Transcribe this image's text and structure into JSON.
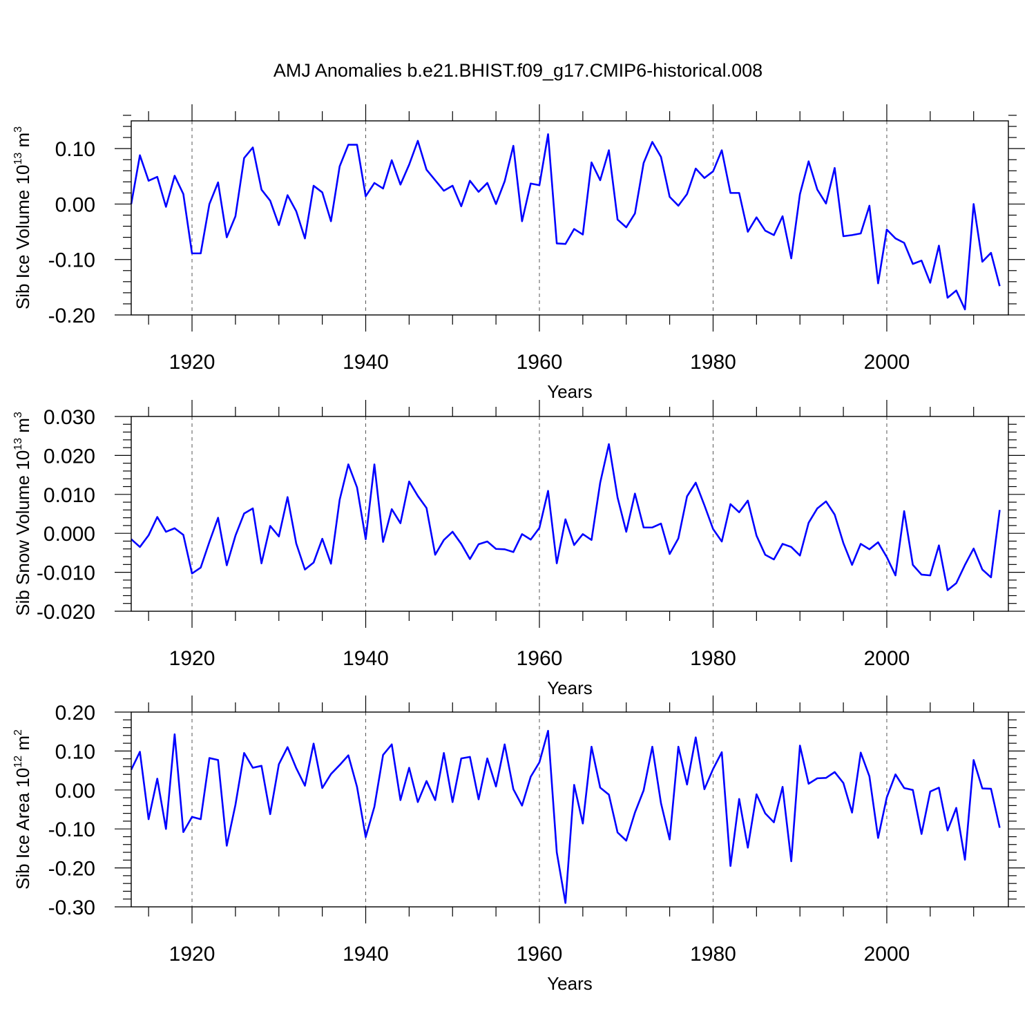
{
  "title": "AMJ Anomalies b.e21.BHIST.f09_g17.CMIP6-historical.008",
  "line_color": "#0000ff",
  "chart_data": [
    {
      "type": "line",
      "ylabel_main": "Sib Ice Volume 10",
      "ylabel_exp": "13",
      "ylabel_unit": " m",
      "ylabel_unit_exp": "3",
      "xlabel": "Years",
      "xlim": [
        1913,
        2014
      ],
      "ylim": [
        -0.2,
        0.15
      ],
      "yticks": [
        -0.2,
        -0.1,
        0.0,
        0.1
      ],
      "ytick_labels": [
        "-0.20",
        "-0.10",
        "0.00",
        "0.10"
      ],
      "xticks": [
        1920,
        1940,
        1960,
        1980,
        2000
      ],
      "xtick_labels": [
        "1920",
        "1940",
        "1960",
        "1980",
        "2000"
      ],
      "x_start": 1913,
      "values": [
        0.0,
        0.088,
        0.042,
        0.049,
        -0.005,
        0.051,
        0.018,
        -0.089,
        -0.089,
        0.0,
        0.039,
        -0.06,
        -0.022,
        0.083,
        0.102,
        0.026,
        0.006,
        -0.038,
        0.016,
        -0.013,
        -0.062,
        0.033,
        0.021,
        -0.031,
        0.068,
        0.107,
        0.107,
        0.014,
        0.038,
        0.028,
        0.079,
        0.035,
        0.071,
        0.114,
        0.062,
        0.043,
        0.024,
        0.033,
        -0.004,
        0.042,
        0.022,
        0.038,
        0.0,
        0.041,
        0.105,
        -0.031,
        0.037,
        0.034,
        0.126,
        -0.071,
        -0.072,
        -0.045,
        -0.055,
        0.075,
        0.043,
        0.097,
        -0.028,
        -0.042,
        -0.017,
        0.074,
        0.112,
        0.085,
        0.013,
        -0.003,
        0.018,
        0.064,
        0.047,
        0.059,
        0.097,
        0.02,
        0.02,
        -0.05,
        -0.024,
        -0.048,
        -0.056,
        -0.022,
        -0.098,
        0.018,
        0.077,
        0.026,
        0.001,
        0.065,
        -0.058,
        -0.056,
        -0.053,
        -0.003,
        -0.143,
        -0.046,
        -0.062,
        -0.07,
        -0.108,
        -0.102,
        -0.142,
        -0.075,
        -0.169,
        -0.156,
        -0.19,
        0.0,
        -0.104,
        -0.088,
        -0.148
      ]
    },
    {
      "type": "line",
      "ylabel_main": "Sib Snow Volume 10",
      "ylabel_exp": "13",
      "ylabel_unit": " m",
      "ylabel_unit_exp": "3",
      "xlabel": "Years",
      "xlim": [
        1913,
        2014
      ],
      "ylim": [
        -0.02,
        0.03
      ],
      "yticks": [
        -0.02,
        -0.01,
        0.0,
        0.01,
        0.02,
        0.03
      ],
      "ytick_labels": [
        "-0.020",
        "-0.010",
        "0.000",
        "0.010",
        "0.020",
        "0.030"
      ],
      "xticks": [
        1920,
        1940,
        1960,
        1980,
        2000
      ],
      "xtick_labels": [
        "1920",
        "1940",
        "1960",
        "1980",
        "2000"
      ],
      "x_start": 1913,
      "values": [
        -0.0015,
        -0.0035,
        -0.0005,
        0.0042,
        0.0004,
        0.0013,
        -0.0004,
        -0.0103,
        -0.0088,
        -0.0022,
        0.004,
        -0.0082,
        -0.0006,
        0.0051,
        0.0064,
        -0.0077,
        0.0019,
        -0.0008,
        0.0093,
        -0.0026,
        -0.0093,
        -0.0075,
        -0.0014,
        -0.0078,
        0.0086,
        0.0177,
        0.0118,
        -0.0015,
        0.0177,
        -0.0022,
        0.0062,
        0.0026,
        0.0133,
        0.0096,
        0.0065,
        -0.0055,
        -0.0017,
        0.0004,
        -0.0027,
        -0.0066,
        -0.0028,
        -0.0021,
        -0.004,
        -0.0041,
        -0.0048,
        -0.0002,
        -0.0016,
        0.0014,
        0.0109,
        -0.0077,
        0.0036,
        -0.003,
        -0.0002,
        -0.0017,
        0.013,
        0.0229,
        0.0092,
        0.0004,
        0.0102,
        0.0015,
        0.0015,
        0.0025,
        -0.0053,
        -0.0013,
        0.0095,
        0.013,
        0.0072,
        0.0011,
        -0.0021,
        0.0075,
        0.0054,
        0.0084,
        -0.0006,
        -0.0055,
        -0.0067,
        -0.0027,
        -0.0035,
        -0.0057,
        0.0027,
        0.0064,
        0.0082,
        0.0048,
        -0.0025,
        -0.0081,
        -0.0027,
        -0.0041,
        -0.0023,
        -0.0061,
        -0.0108,
        0.0057,
        -0.0081,
        -0.0106,
        -0.0108,
        -0.0031,
        -0.0146,
        -0.0128,
        -0.0081,
        -0.0039,
        -0.0093,
        -0.0113,
        0.006
      ]
    },
    {
      "type": "line",
      "ylabel_main": "Sib Ice Area 10",
      "ylabel_exp": "12",
      "ylabel_unit": " m",
      "ylabel_unit_exp": "2",
      "xlabel": "Years",
      "xlim": [
        1913,
        2014
      ],
      "ylim": [
        -0.3,
        0.2
      ],
      "yticks": [
        -0.3,
        -0.2,
        -0.1,
        0.0,
        0.1,
        0.2
      ],
      "ytick_labels": [
        "-0.30",
        "-0.20",
        "-0.10",
        "0.00",
        "0.10",
        "0.20"
      ],
      "xticks": [
        1920,
        1940,
        1960,
        1980,
        2000
      ],
      "xtick_labels": [
        "1920",
        "1940",
        "1960",
        "1980",
        "2000"
      ],
      "x_start": 1913,
      "values": [
        0.052,
        0.098,
        -0.075,
        0.029,
        -0.1,
        0.143,
        -0.108,
        -0.069,
        -0.075,
        0.082,
        0.077,
        -0.143,
        -0.038,
        0.095,
        0.057,
        0.062,
        -0.062,
        0.066,
        0.11,
        0.056,
        0.011,
        0.119,
        0.005,
        0.041,
        0.064,
        0.089,
        0.008,
        -0.121,
        -0.043,
        0.09,
        0.117,
        -0.026,
        0.057,
        -0.031,
        0.023,
        -0.026,
        0.095,
        -0.031,
        0.081,
        0.085,
        -0.024,
        0.081,
        0.009,
        0.117,
        0.002,
        -0.04,
        0.034,
        0.071,
        0.152,
        -0.16,
        -0.29,
        0.013,
        -0.086,
        0.111,
        0.006,
        -0.012,
        -0.109,
        -0.13,
        -0.058,
        -0.001,
        0.111,
        -0.034,
        -0.127,
        0.111,
        0.014,
        0.135,
        0.002,
        0.054,
        0.097,
        -0.195,
        -0.023,
        -0.148,
        -0.011,
        -0.06,
        -0.083,
        0.008,
        -0.183,
        0.114,
        0.016,
        0.03,
        0.031,
        0.046,
        0.018,
        -0.058,
        0.096,
        0.035,
        -0.123,
        -0.019,
        0.04,
        0.005,
        0.0,
        -0.113,
        -0.004,
        0.006,
        -0.104,
        -0.046,
        -0.179,
        0.077,
        0.004,
        0.003,
        -0.097
      ]
    }
  ]
}
